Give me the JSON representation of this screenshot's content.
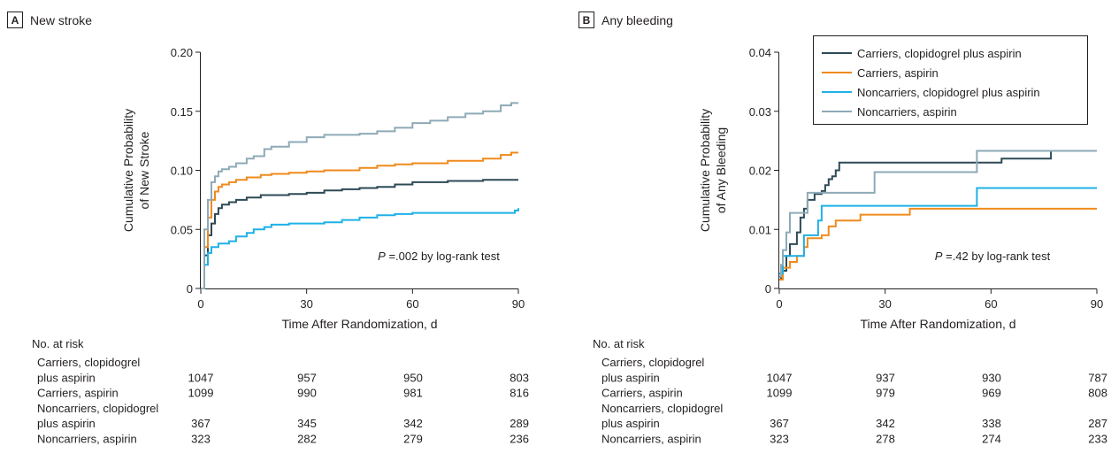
{
  "colors": {
    "carriers_clop": "#2d4a56",
    "carriers_asp": "#f08a1c",
    "noncarriers_clop": "#1fb1e6",
    "noncarriers_asp": "#8eaab6",
    "text": "#231f20"
  },
  "risk_header": "No. at risk",
  "chart_data": [
    {
      "type": "line",
      "panel_letter": "A",
      "title": "New stroke",
      "xlabel": "Time After Randomization, d",
      "ylabel": [
        "Cumulative Probability",
        "of New Stroke"
      ],
      "xlim": [
        0,
        90
      ],
      "ylim": [
        0,
        0.2
      ],
      "xticks": [
        "0",
        "30",
        "60",
        "90"
      ],
      "yticks": [
        "0",
        "0.05",
        "0.10",
        "0.15",
        "0.20"
      ],
      "annotation_p": "P",
      "annotation_rest": " =.002 by log-rank test",
      "legend": false,
      "series": [
        {
          "name": "Carriers, clopidogrel plus aspirin",
          "color_key": "carriers_clop",
          "points": [
            [
              0,
              0
            ],
            [
              1,
              0.028
            ],
            [
              2,
              0.045
            ],
            [
              3,
              0.055
            ],
            [
              4,
              0.063
            ],
            [
              5,
              0.068
            ],
            [
              6,
              0.071
            ],
            [
              8,
              0.073
            ],
            [
              10,
              0.075
            ],
            [
              13,
              0.077
            ],
            [
              17,
              0.079
            ],
            [
              20,
              0.079
            ],
            [
              25,
              0.08
            ],
            [
              30,
              0.081
            ],
            [
              35,
              0.083
            ],
            [
              40,
              0.084
            ],
            [
              45,
              0.085
            ],
            [
              50,
              0.086
            ],
            [
              55,
              0.088
            ],
            [
              60,
              0.09
            ],
            [
              70,
              0.091
            ],
            [
              80,
              0.092
            ],
            [
              90,
              0.092
            ]
          ]
        },
        {
          "name": "Carriers, aspirin",
          "color_key": "carriers_asp",
          "points": [
            [
              0,
              0
            ],
            [
              1,
              0.035
            ],
            [
              2,
              0.06
            ],
            [
              3,
              0.075
            ],
            [
              4,
              0.082
            ],
            [
              5,
              0.086
            ],
            [
              6,
              0.088
            ],
            [
              8,
              0.09
            ],
            [
              10,
              0.092
            ],
            [
              13,
              0.094
            ],
            [
              17,
              0.096
            ],
            [
              20,
              0.097
            ],
            [
              25,
              0.098
            ],
            [
              30,
              0.099
            ],
            [
              35,
              0.1
            ],
            [
              40,
              0.1
            ],
            [
              45,
              0.102
            ],
            [
              50,
              0.104
            ],
            [
              55,
              0.105
            ],
            [
              60,
              0.106
            ],
            [
              70,
              0.108
            ],
            [
              80,
              0.11
            ],
            [
              85,
              0.113
            ],
            [
              88,
              0.115
            ],
            [
              90,
              0.115
            ]
          ]
        },
        {
          "name": "Noncarriers, clopidogrel plus aspirin",
          "color_key": "noncarriers_clop",
          "points": [
            [
              0,
              0
            ],
            [
              1,
              0.02
            ],
            [
              2,
              0.03
            ],
            [
              3,
              0.035
            ],
            [
              5,
              0.038
            ],
            [
              8,
              0.04
            ],
            [
              10,
              0.044
            ],
            [
              13,
              0.047
            ],
            [
              15,
              0.05
            ],
            [
              18,
              0.052
            ],
            [
              20,
              0.054
            ],
            [
              25,
              0.055
            ],
            [
              30,
              0.055
            ],
            [
              35,
              0.056
            ],
            [
              40,
              0.058
            ],
            [
              45,
              0.06
            ],
            [
              50,
              0.062
            ],
            [
              55,
              0.063
            ],
            [
              60,
              0.064
            ],
            [
              70,
              0.064
            ],
            [
              80,
              0.064
            ],
            [
              88,
              0.064
            ],
            [
              89,
              0.066
            ],
            [
              90,
              0.068
            ]
          ]
        },
        {
          "name": "Noncarriers, aspirin",
          "color_key": "noncarriers_asp",
          "points": [
            [
              0,
              0
            ],
            [
              1,
              0.05
            ],
            [
              2,
              0.075
            ],
            [
              3,
              0.09
            ],
            [
              4,
              0.095
            ],
            [
              5,
              0.099
            ],
            [
              6,
              0.101
            ],
            [
              8,
              0.103
            ],
            [
              10,
              0.106
            ],
            [
              13,
              0.11
            ],
            [
              15,
              0.112
            ],
            [
              18,
              0.118
            ],
            [
              20,
              0.12
            ],
            [
              25,
              0.124
            ],
            [
              30,
              0.128
            ],
            [
              35,
              0.13
            ],
            [
              40,
              0.13
            ],
            [
              45,
              0.131
            ],
            [
              50,
              0.133
            ],
            [
              55,
              0.136
            ],
            [
              60,
              0.14
            ],
            [
              65,
              0.142
            ],
            [
              70,
              0.145
            ],
            [
              75,
              0.148
            ],
            [
              80,
              0.15
            ],
            [
              85,
              0.155
            ],
            [
              88,
              0.157
            ],
            [
              90,
              0.157
            ]
          ]
        }
      ]
    },
    {
      "type": "line",
      "panel_letter": "B",
      "title": "Any bleeding",
      "xlabel": "Time After Randomization, d",
      "ylabel": [
        "Cumulative Probability",
        "of Any Bleeding"
      ],
      "xlim": [
        0,
        90
      ],
      "ylim": [
        0,
        0.04
      ],
      "xticks": [
        "0",
        "30",
        "60",
        "90"
      ],
      "yticks": [
        "0",
        "0.01",
        "0.02",
        "0.03",
        "0.04"
      ],
      "annotation_p": "P",
      "annotation_rest": " =.42 by log-rank test",
      "legend": true,
      "legend_position": "top-right",
      "series": [
        {
          "name": "Carriers, clopidogrel plus aspirin",
          "color_key": "carriers_clop",
          "points": [
            [
              0,
              0.0015
            ],
            [
              0.5,
              0.003
            ],
            [
              2,
              0.0055
            ],
            [
              3,
              0.0075
            ],
            [
              5,
              0.0095
            ],
            [
              6,
              0.012
            ],
            [
              7,
              0.0135
            ],
            [
              8,
              0.015
            ],
            [
              10,
              0.016
            ],
            [
              12,
              0.0165
            ],
            [
              13,
              0.0175
            ],
            [
              14,
              0.0185
            ],
            [
              15,
              0.019
            ],
            [
              16,
              0.02
            ],
            [
              17,
              0.0213
            ],
            [
              30,
              0.0213
            ],
            [
              55,
              0.0213
            ],
            [
              62,
              0.0213
            ],
            [
              63,
              0.022
            ],
            [
              76,
              0.022
            ],
            [
              77,
              0.0233
            ],
            [
              90,
              0.0233
            ]
          ]
        },
        {
          "name": "Carriers, aspirin",
          "color_key": "carriers_asp",
          "points": [
            [
              0,
              0.0015
            ],
            [
              1,
              0.0035
            ],
            [
              3,
              0.0045
            ],
            [
              5,
              0.0055
            ],
            [
              7,
              0.007
            ],
            [
              8,
              0.0085
            ],
            [
              12,
              0.009
            ],
            [
              14,
              0.0105
            ],
            [
              16,
              0.0115
            ],
            [
              22,
              0.0115
            ],
            [
              23,
              0.0125
            ],
            [
              36,
              0.0125
            ],
            [
              37,
              0.0135
            ],
            [
              56,
              0.0135
            ],
            [
              90,
              0.0135
            ]
          ]
        },
        {
          "name": "Noncarriers, clopidogrel plus aspirin",
          "color_key": "noncarriers_clop",
          "points": [
            [
              0,
              0.0025
            ],
            [
              1,
              0.0055
            ],
            [
              6,
              0.0055
            ],
            [
              7,
              0.009
            ],
            [
              10,
              0.009
            ],
            [
              11,
              0.0115
            ],
            [
              12,
              0.014
            ],
            [
              55,
              0.014
            ],
            [
              56,
              0.017
            ],
            [
              90,
              0.017
            ]
          ]
        },
        {
          "name": "Noncarriers, aspirin",
          "color_key": "noncarriers_asp",
          "points": [
            [
              0,
              0.002
            ],
            [
              0.5,
              0.004
            ],
            [
              1,
              0.0065
            ],
            [
              2,
              0.0095
            ],
            [
              3,
              0.0128
            ],
            [
              7,
              0.0128
            ],
            [
              8,
              0.0162
            ],
            [
              26,
              0.0162
            ],
            [
              27,
              0.0197
            ],
            [
              55,
              0.0197
            ],
            [
              56,
              0.0233
            ],
            [
              90,
              0.0233
            ]
          ]
        }
      ]
    }
  ],
  "risk_tables": [
    {
      "rows": [
        {
          "label": [
            "Carriers, clopidogrel",
            "plus aspirin"
          ],
          "values": [
            "1047",
            "957",
            "950",
            "803"
          ]
        },
        {
          "label": [
            "Carriers, aspirin"
          ],
          "values": [
            "1099",
            "990",
            "981",
            "816"
          ]
        },
        {
          "label": [
            "Noncarriers, clopidogrel",
            "plus aspirin"
          ],
          "values": [
            "367",
            "345",
            "342",
            "289"
          ]
        },
        {
          "label": [
            "Noncarriers, aspirin"
          ],
          "values": [
            "323",
            "282",
            "279",
            "236"
          ]
        }
      ]
    },
    {
      "rows": [
        {
          "label": [
            "Carriers, clopidogrel",
            "plus aspirin"
          ],
          "values": [
            "1047",
            "937",
            "930",
            "787"
          ]
        },
        {
          "label": [
            "Carriers, aspirin"
          ],
          "values": [
            "1099",
            "979",
            "969",
            "808"
          ]
        },
        {
          "label": [
            "Noncarriers, clopidogrel",
            "plus aspirin"
          ],
          "values": [
            "367",
            "342",
            "338",
            "287"
          ]
        },
        {
          "label": [
            "Noncarriers, aspirin"
          ],
          "values": [
            "323",
            "278",
            "274",
            "233"
          ]
        }
      ]
    }
  ]
}
